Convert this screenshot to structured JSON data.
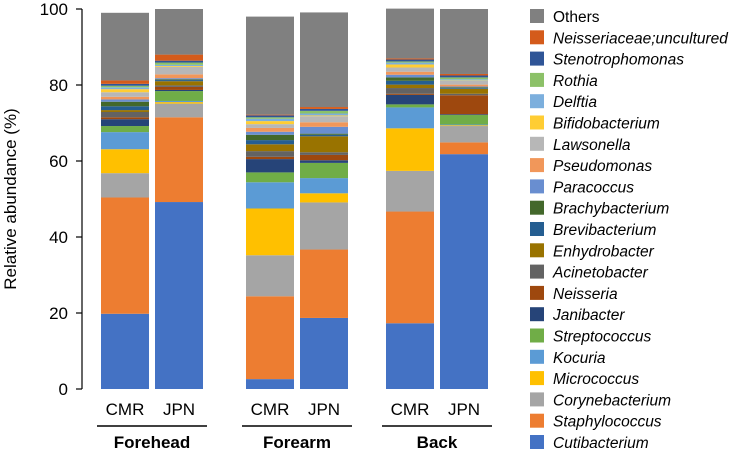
{
  "chart_data": {
    "type": "bar",
    "stacked": true,
    "ylabel": "Relative abundance (%)",
    "ylim": [
      0,
      100
    ],
    "yticks": [
      0,
      20,
      40,
      60,
      80,
      100
    ],
    "groups": [
      "Forehead",
      "Forearm",
      "Back"
    ],
    "categories": [
      "CMR",
      "JPN",
      "CMR",
      "JPN",
      "CMR",
      "JPN"
    ],
    "series": [
      {
        "name": "Cutibacterium",
        "color": "#4472c4",
        "values": [
          19.8,
          49.2,
          2.6,
          18.7,
          17.3,
          61.8
        ]
      },
      {
        "name": "Staphylococcus",
        "color": "#ed7d31",
        "values": [
          30.6,
          22.3,
          21.8,
          18.0,
          29.4,
          3.1
        ]
      },
      {
        "name": "Corynebacterium",
        "color": "#a5a5a5",
        "values": [
          6.4,
          3.6,
          10.8,
          12.4,
          10.7,
          4.3
        ]
      },
      {
        "name": "Micrococcus",
        "color": "#ffc000",
        "values": [
          6.3,
          0.4,
          12.3,
          2.4,
          11.2,
          0.2
        ]
      },
      {
        "name": "Kocuria",
        "color": "#5b9bd5",
        "values": [
          4.5,
          0.3,
          6.9,
          4.0,
          5.5,
          0.2
        ]
      },
      {
        "name": "Streptococcus",
        "color": "#70ad47",
        "values": [
          1.6,
          2.6,
          2.6,
          4.0,
          0.8,
          2.5
        ]
      },
      {
        "name": "Janibacter",
        "color": "#264478",
        "values": [
          1.8,
          0.3,
          3.5,
          0.7,
          2.5,
          0.2
        ]
      },
      {
        "name": "Neisseria",
        "color": "#9e480e",
        "values": [
          0.5,
          0.8,
          0.6,
          1.4,
          0.3,
          5.0
        ]
      },
      {
        "name": "Acinetobacter",
        "color": "#636363",
        "values": [
          1.4,
          0.4,
          1.5,
          0.7,
          1.5,
          0.4
        ]
      },
      {
        "name": "Enhydrobacter",
        "color": "#997300",
        "values": [
          0.5,
          1.1,
          1.8,
          4.2,
          0.9,
          1.3
        ]
      },
      {
        "name": "Brevibacterium",
        "color": "#255e91",
        "values": [
          1.0,
          0.3,
          1.1,
          0.4,
          1.0,
          0.2
        ]
      },
      {
        "name": "Brachybacterium",
        "color": "#43682b",
        "values": [
          1.2,
          0.2,
          1.4,
          0.3,
          0.9,
          0.2
        ]
      },
      {
        "name": "Paracoccus",
        "color": "#698ed0",
        "values": [
          0.6,
          0.3,
          0.8,
          1.8,
          0.7,
          0.2
        ]
      },
      {
        "name": "Pseudomonas",
        "color": "#f1975a",
        "values": [
          0.7,
          1.0,
          1.0,
          1.2,
          0.8,
          0.5
        ]
      },
      {
        "name": "Lawsonella",
        "color": "#b7b7b7",
        "values": [
          1.2,
          2.0,
          1.0,
          1.6,
          1.1,
          1.0
        ]
      },
      {
        "name": "Bifidobacterium",
        "color": "#ffcd33",
        "values": [
          0.8,
          0.2,
          0.8,
          0.2,
          0.8,
          0.1
        ]
      },
      {
        "name": "Delftia",
        "color": "#7cafdd",
        "values": [
          0.5,
          0.3,
          0.6,
          0.5,
          0.5,
          0.3
        ]
      },
      {
        "name": "Rothia",
        "color": "#8cc168",
        "values": [
          0.4,
          0.6,
          0.4,
          0.7,
          0.3,
          0.5
        ]
      },
      {
        "name": "Stenotrophomonas",
        "color": "#2f5597",
        "values": [
          0.5,
          0.5,
          0.5,
          0.5,
          0.5,
          0.5
        ]
      },
      {
        "name": "Neisseriaceae;uncultured",
        "color": "#d45b1b",
        "values": [
          0.9,
          1.6,
          0.2,
          0.5,
          0.3,
          0.4
        ]
      },
      {
        "name": "Others",
        "color": "#808080",
        "values": [
          17.8,
          12.0,
          25.8,
          24.9,
          13.1,
          17.1
        ]
      }
    ]
  }
}
